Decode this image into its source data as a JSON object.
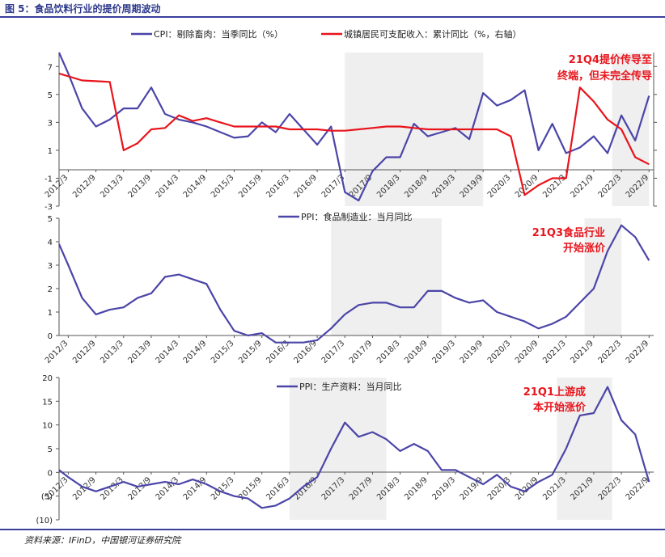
{
  "figure": {
    "title": "图 5：食品饮料行业的提价周期波动",
    "source": "资料来源：IFinD，中国银河证券研究院"
  },
  "colors": {
    "accent": "#2f3a8c",
    "series_blue": "#4b45a8",
    "series_red": "#e8141c",
    "shade": "#efefef",
    "annotation_red": "#e8141c"
  },
  "chart_data": [
    {
      "type": "line",
      "x_ticks": [
        "2012/3",
        "2012/9",
        "2013/3",
        "2013/9",
        "2014/3",
        "2014/9",
        "2015/3",
        "2015/9",
        "2016/3",
        "2016/9",
        "2017/3",
        "2017/9",
        "2018/3",
        "2018/9",
        "2019/3",
        "2019/9",
        "2020/3",
        "2020/9",
        "2021/3",
        "2021/9",
        "2022/3",
        "2022/9"
      ],
      "ylim": [
        -3,
        8
      ],
      "y_ticks": [
        "-3",
        "-1",
        "1",
        "3",
        "5",
        "7"
      ],
      "shaded_periods": [
        [
          "2017/3",
          "2019/9"
        ],
        [
          "2022/1",
          "2022/9"
        ]
      ],
      "annotation": "21Q4提价传导至终端，但未完全传导",
      "series": [
        {
          "name": "CPI：剔除畜肉：当季同比（%）",
          "axis": "left",
          "x": [
            "2012/1",
            "2012/3",
            "2012/6",
            "2012/9",
            "2012/12",
            "2013/3",
            "2013/6",
            "2013/9",
            "2013/12",
            "2014/3",
            "2014/6",
            "2014/9",
            "2014/12",
            "2015/3",
            "2015/6",
            "2015/9",
            "2015/12",
            "2016/3",
            "2016/6",
            "2016/9",
            "2016/12",
            "2017/3",
            "2017/6",
            "2017/9",
            "2017/12",
            "2018/3",
            "2018/6",
            "2018/9",
            "2018/12",
            "2019/3",
            "2019/6",
            "2019/9",
            "2019/12",
            "2020/3",
            "2020/6",
            "2020/9",
            "2020/12",
            "2021/3",
            "2021/6",
            "2021/9",
            "2021/12",
            "2022/3",
            "2022/6",
            "2022/9"
          ],
          "values": [
            8.0,
            6.5,
            4.0,
            2.7,
            3.2,
            4.0,
            4.0,
            5.5,
            3.6,
            3.2,
            3.0,
            2.7,
            2.3,
            1.9,
            2.0,
            3.0,
            2.3,
            3.6,
            2.5,
            1.4,
            2.7,
            -2.0,
            -2.6,
            -0.5,
            0.5,
            0.5,
            2.9,
            2.0,
            2.3,
            2.6,
            1.8,
            5.1,
            4.2,
            4.6,
            5.3,
            1.0,
            2.9,
            0.8,
            1.2,
            2.0,
            0.8,
            3.5,
            1.7,
            4.9
          ]
        },
        {
          "name": "城镇居民可支配收入：累计同比（%，右轴）",
          "axis": "right",
          "x": [
            "2012/1",
            "2012/6",
            "2012/12",
            "2013/3",
            "2013/6",
            "2013/9",
            "2013/12",
            "2014/3",
            "2014/6",
            "2014/9",
            "2014/12",
            "2015/3",
            "2015/6",
            "2015/9",
            "2015/12",
            "2016/3",
            "2016/6",
            "2016/9",
            "2016/12",
            "2017/3",
            "2017/6",
            "2017/9",
            "2017/12",
            "2018/3",
            "2018/6",
            "2018/9",
            "2018/12",
            "2019/3",
            "2019/6",
            "2019/9",
            "2019/12",
            "2020/3",
            "2020/6",
            "2020/9",
            "2020/12",
            "2021/3",
            "2021/6",
            "2021/9",
            "2021/12",
            "2022/3",
            "2022/6",
            "2022/9"
          ],
          "values": [
            6.5,
            6.0,
            5.9,
            1.0,
            1.5,
            2.5,
            2.6,
            3.5,
            3.1,
            3.3,
            3.0,
            2.7,
            2.7,
            2.7,
            2.7,
            2.5,
            2.5,
            2.5,
            2.4,
            2.4,
            2.5,
            2.6,
            2.7,
            2.7,
            2.6,
            2.5,
            2.5,
            2.5,
            2.5,
            2.5,
            2.5,
            2.0,
            -2.2,
            -1.5,
            -1.0,
            -1.0,
            5.5,
            4.5,
            3.2,
            2.5,
            0.5,
            0.0
          ]
        }
      ]
    },
    {
      "type": "line",
      "x_ticks": [
        "2012/3",
        "2012/9",
        "2013/3",
        "2013/9",
        "2014/3",
        "2014/9",
        "2015/3",
        "2015/9",
        "2016/3",
        "2016/9",
        "2017/3",
        "2017/9",
        "2018/3",
        "2018/9",
        "2019/3",
        "2019/9",
        "2020/3",
        "2020/9",
        "2021/3",
        "2021/9",
        "2022/3",
        "2022/9"
      ],
      "ylim": [
        0,
        5
      ],
      "y_ticks": [
        "0",
        "1",
        "2",
        "3",
        "4",
        "5"
      ],
      "shaded_periods": [
        [
          "2016/12",
          "2018/12"
        ],
        [
          "2021/7",
          "2022/3"
        ]
      ],
      "annotation": "21Q3食品行业开始涨价",
      "series": [
        {
          "name": "PPI：食品制造业：当月同比",
          "x": [
            "2012/1",
            "2012/3",
            "2012/6",
            "2012/9",
            "2012/12",
            "2013/3",
            "2013/6",
            "2013/9",
            "2013/12",
            "2014/3",
            "2014/6",
            "2014/9",
            "2014/12",
            "2015/3",
            "2015/6",
            "2015/9",
            "2015/12",
            "2016/3",
            "2016/6",
            "2016/9",
            "2016/12",
            "2017/3",
            "2017/6",
            "2017/9",
            "2017/12",
            "2018/3",
            "2018/6",
            "2018/9",
            "2018/12",
            "2019/3",
            "2019/6",
            "2019/9",
            "2019/12",
            "2020/3",
            "2020/6",
            "2020/9",
            "2020/12",
            "2021/3",
            "2021/6",
            "2021/9",
            "2021/12",
            "2022/3",
            "2022/6",
            "2022/9"
          ],
          "values": [
            3.9,
            3.0,
            1.6,
            0.9,
            1.1,
            1.2,
            1.6,
            1.8,
            2.5,
            2.6,
            2.4,
            2.2,
            1.1,
            0.2,
            0.0,
            0.1,
            -0.3,
            -0.3,
            -0.3,
            -0.2,
            0.3,
            0.9,
            1.3,
            1.4,
            1.4,
            1.2,
            1.2,
            1.9,
            1.9,
            1.6,
            1.4,
            1.5,
            1.0,
            0.8,
            0.6,
            0.3,
            0.5,
            0.8,
            1.4,
            2.0,
            3.6,
            4.7,
            4.2,
            3.2
          ]
        }
      ]
    },
    {
      "type": "line",
      "x_ticks": [
        "2012/3",
        "2012/9",
        "2013/3",
        "2013/9",
        "2014/3",
        "2014/9",
        "2015/3",
        "2015/9",
        "2016/3",
        "2016/9",
        "2017/3",
        "2017/9",
        "2018/3",
        "2018/9",
        "2019/3",
        "2019/9",
        "2020/3",
        "2020/9",
        "2021/3",
        "2021/9",
        "2022/3",
        "2022/9"
      ],
      "ylim": [
        -10,
        20
      ],
      "y_ticks": [
        "(10)",
        "(5)",
        "0",
        "5",
        "10",
        "15",
        "20"
      ],
      "shaded_periods": [
        [
          "2016/3",
          "2017/12"
        ],
        [
          "2021/1",
          "2022/1"
        ]
      ],
      "annotation": "21Q1上游成本开始涨价",
      "series": [
        {
          "name": "PPI：生产资料：当月同比",
          "x": [
            "2012/1",
            "2012/3",
            "2012/6",
            "2012/9",
            "2012/12",
            "2013/3",
            "2013/6",
            "2013/9",
            "2013/12",
            "2014/3",
            "2014/6",
            "2014/9",
            "2014/12",
            "2015/3",
            "2015/6",
            "2015/9",
            "2015/12",
            "2016/3",
            "2016/6",
            "2016/9",
            "2016/12",
            "2017/3",
            "2017/6",
            "2017/9",
            "2017/12",
            "2018/3",
            "2018/6",
            "2018/9",
            "2018/12",
            "2019/3",
            "2019/6",
            "2019/9",
            "2019/12",
            "2020/3",
            "2020/6",
            "2020/9",
            "2020/12",
            "2021/3",
            "2021/6",
            "2021/9",
            "2021/12",
            "2022/3",
            "2022/6",
            "2022/9"
          ],
          "values": [
            0.5,
            -1.0,
            -3.0,
            -4.0,
            -3.0,
            -2.0,
            -3.0,
            -2.5,
            -2.0,
            -2.5,
            -1.5,
            -2.5,
            -4.0,
            -5.0,
            -5.5,
            -7.5,
            -7.0,
            -5.5,
            -3.0,
            -1.0,
            5.0,
            10.5,
            7.5,
            8.5,
            7.0,
            4.5,
            6.0,
            4.5,
            0.5,
            0.5,
            -1.0,
            -2.5,
            -0.5,
            -3.0,
            -4.0,
            -2.0,
            -0.5,
            5.0,
            12.0,
            12.5,
            18.0,
            11.0,
            8.0,
            -2.0
          ]
        }
      ]
    }
  ]
}
